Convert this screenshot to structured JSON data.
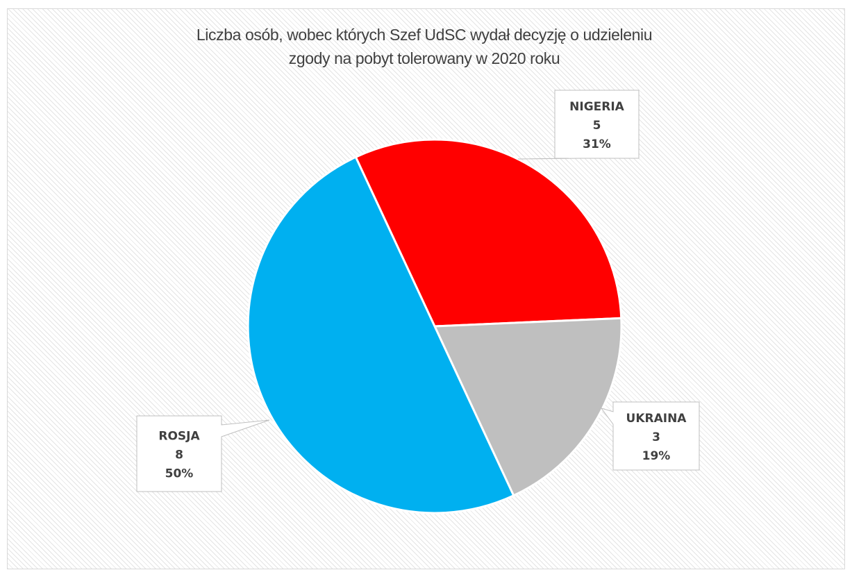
{
  "chart_data": {
    "type": "pie",
    "title_lines": [
      "Liczba osób, wobec których Szef UdSC wydał decyzję o  udzieleniu",
      "zgody na pobyt tolerowany w 2020 roku"
    ],
    "slices": [
      {
        "label": "NIGERIA",
        "value": 5,
        "value_label": "5",
        "percent_label": "31%",
        "color": "#ff0000"
      },
      {
        "label": "UKRAINA",
        "value": 3,
        "value_label": "3",
        "percent_label": "19%",
        "color": "#bfbfbf"
      },
      {
        "label": "ROSJA",
        "value": 8,
        "value_label": "8",
        "percent_label": "50%",
        "color": "#00b0f0"
      }
    ],
    "start_angle_deg": -25,
    "data_labels": "callouts"
  }
}
